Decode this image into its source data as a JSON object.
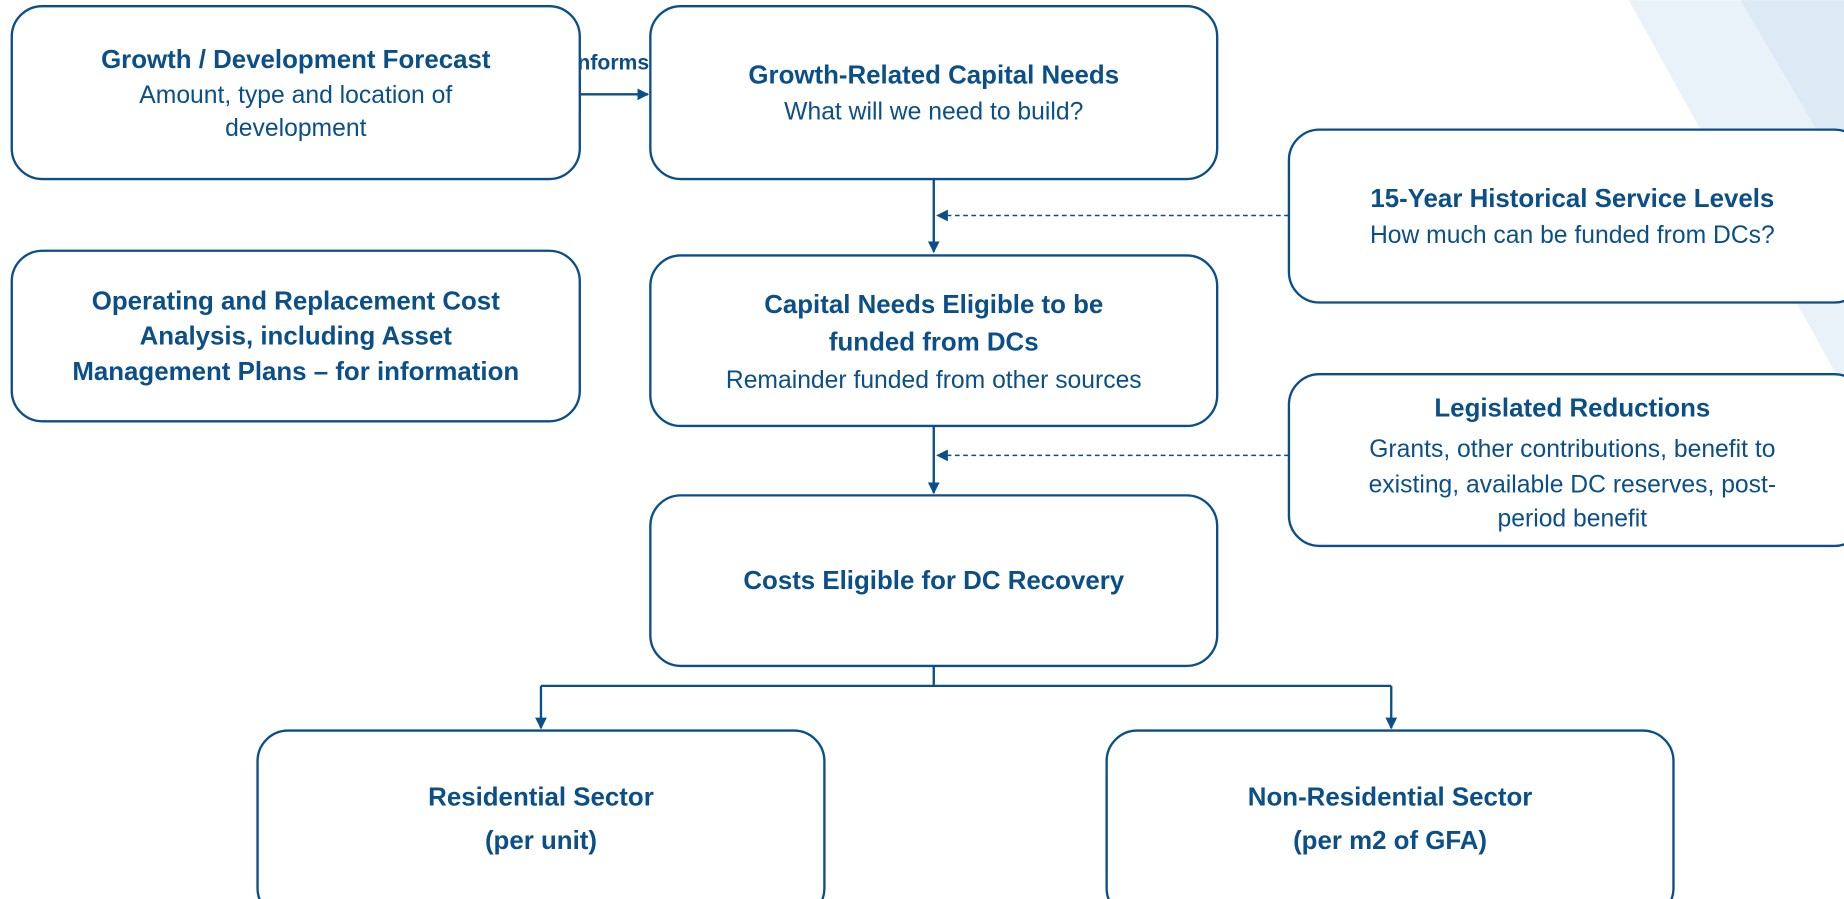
{
  "nodes": [
    {
      "title": [
        "Growth / Development Forecast"
      ],
      "text": [
        "Amount, type and location of",
        "development"
      ]
    },
    {
      "title": [
        "Growth-Related Capital Needs"
      ],
      "text": [
        "What will we need to build?"
      ]
    },
    {
      "title": [
        "15-Year Historical Service Levels"
      ],
      "text": [
        "How much can be funded from DCs?"
      ]
    },
    {
      "title": [
        "Operating and Replacement Cost",
        "Analysis, including Asset",
        "Management Plans – for information"
      ],
      "text": []
    },
    {
      "title": [
        "Capital Needs Eligible to be",
        "funded from DCs"
      ],
      "text": [
        "Remainder funded from other sources"
      ]
    },
    {
      "title": [
        "Legislated Reductions"
      ],
      "text": [
        "Grants, other contributions, benefit to",
        "existing, available DC reserves, post-",
        "period benefit"
      ]
    },
    {
      "title": [
        "Costs Eligible for DC Recovery"
      ],
      "text": []
    },
    {
      "title": [
        "Residential Sector",
        "(per unit)"
      ],
      "text": []
    },
    {
      "title": [
        "Non-Residential Sector",
        "(per m2 of GFA)"
      ],
      "text": []
    }
  ],
  "edges": [
    {
      "label": "Informs"
    }
  ]
}
